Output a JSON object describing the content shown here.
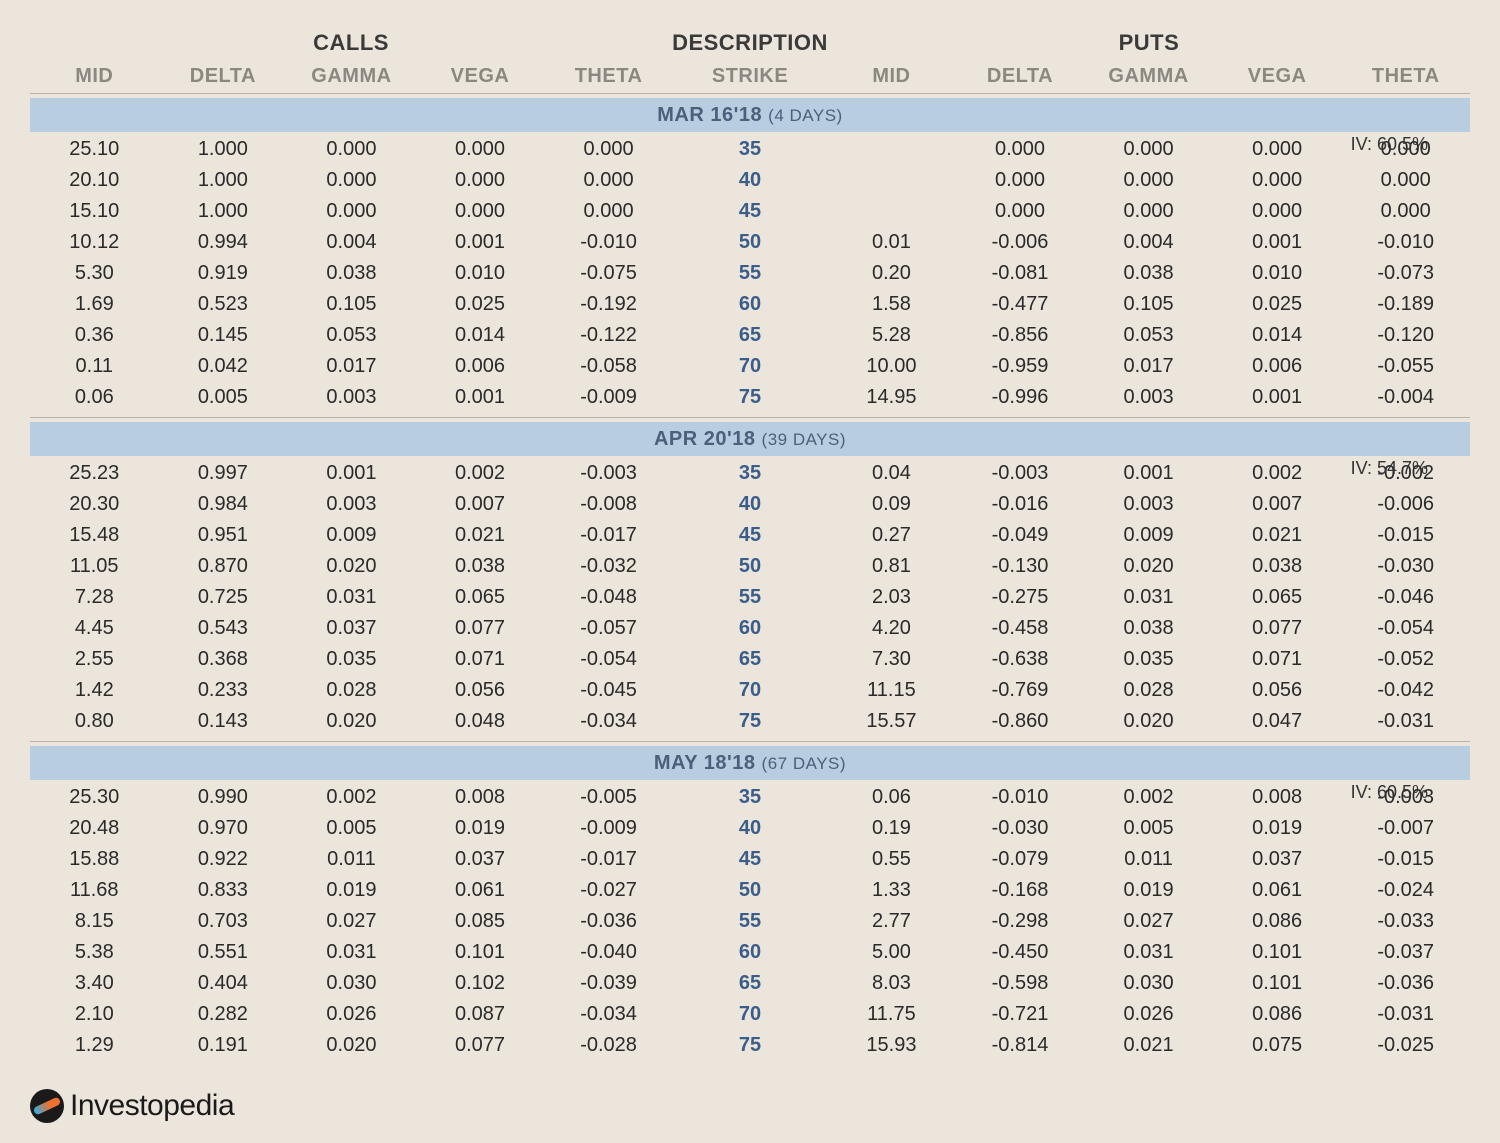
{
  "type": "table",
  "background_color": "#ece5db",
  "section_bar_color": "#b9cde0",
  "strike_color": "#3a5d8a",
  "header_text_color": "#8a8880",
  "columns": {
    "groups": {
      "calls": "CALLS",
      "description": "DESCRIPTION",
      "puts": "PUTS"
    },
    "labels": [
      "MID",
      "DELTA",
      "GAMMA",
      "VEGA",
      "THETA",
      "STRIKE",
      "MID",
      "DELTA",
      "GAMMA",
      "VEGA",
      "THETA"
    ]
  },
  "sections": [
    {
      "date": "MAR 16'18",
      "days": "(4 DAYS)",
      "iv": "IV: 60.5%",
      "rows": [
        [
          "25.10",
          "1.000",
          "0.000",
          "0.000",
          "0.000",
          "35",
          "",
          "0.000",
          "0.000",
          "0.000",
          "0.000"
        ],
        [
          "20.10",
          "1.000",
          "0.000",
          "0.000",
          "0.000",
          "40",
          "",
          "0.000",
          "0.000",
          "0.000",
          "0.000"
        ],
        [
          "15.10",
          "1.000",
          "0.000",
          "0.000",
          "0.000",
          "45",
          "",
          "0.000",
          "0.000",
          "0.000",
          "0.000"
        ],
        [
          "10.12",
          "0.994",
          "0.004",
          "0.001",
          "-0.010",
          "50",
          "0.01",
          "-0.006",
          "0.004",
          "0.001",
          "-0.010"
        ],
        [
          "5.30",
          "0.919",
          "0.038",
          "0.010",
          "-0.075",
          "55",
          "0.20",
          "-0.081",
          "0.038",
          "0.010",
          "-0.073"
        ],
        [
          "1.69",
          "0.523",
          "0.105",
          "0.025",
          "-0.192",
          "60",
          "1.58",
          "-0.477",
          "0.105",
          "0.025",
          "-0.189"
        ],
        [
          "0.36",
          "0.145",
          "0.053",
          "0.014",
          "-0.122",
          "65",
          "5.28",
          "-0.856",
          "0.053",
          "0.014",
          "-0.120"
        ],
        [
          "0.11",
          "0.042",
          "0.017",
          "0.006",
          "-0.058",
          "70",
          "10.00",
          "-0.959",
          "0.017",
          "0.006",
          "-0.055"
        ],
        [
          "0.06",
          "0.005",
          "0.003",
          "0.001",
          "-0.009",
          "75",
          "14.95",
          "-0.996",
          "0.003",
          "0.001",
          "-0.004"
        ]
      ]
    },
    {
      "date": "APR 20'18",
      "days": "(39 DAYS)",
      "iv": "IV: 54.7%",
      "rows": [
        [
          "25.23",
          "0.997",
          "0.001",
          "0.002",
          "-0.003",
          "35",
          "0.04",
          "-0.003",
          "0.001",
          "0.002",
          "-0.002"
        ],
        [
          "20.30",
          "0.984",
          "0.003",
          "0.007",
          "-0.008",
          "40",
          "0.09",
          "-0.016",
          "0.003",
          "0.007",
          "-0.006"
        ],
        [
          "15.48",
          "0.951",
          "0.009",
          "0.021",
          "-0.017",
          "45",
          "0.27",
          "-0.049",
          "0.009",
          "0.021",
          "-0.015"
        ],
        [
          "11.05",
          "0.870",
          "0.020",
          "0.038",
          "-0.032",
          "50",
          "0.81",
          "-0.130",
          "0.020",
          "0.038",
          "-0.030"
        ],
        [
          "7.28",
          "0.725",
          "0.031",
          "0.065",
          "-0.048",
          "55",
          "2.03",
          "-0.275",
          "0.031",
          "0.065",
          "-0.046"
        ],
        [
          "4.45",
          "0.543",
          "0.037",
          "0.077",
          "-0.057",
          "60",
          "4.20",
          "-0.458",
          "0.038",
          "0.077",
          "-0.054"
        ],
        [
          "2.55",
          "0.368",
          "0.035",
          "0.071",
          "-0.054",
          "65",
          "7.30",
          "-0.638",
          "0.035",
          "0.071",
          "-0.052"
        ],
        [
          "1.42",
          "0.233",
          "0.028",
          "0.056",
          "-0.045",
          "70",
          "11.15",
          "-0.769",
          "0.028",
          "0.056",
          "-0.042"
        ],
        [
          "0.80",
          "0.143",
          "0.020",
          "0.048",
          "-0.034",
          "75",
          "15.57",
          "-0.860",
          "0.020",
          "0.047",
          "-0.031"
        ]
      ]
    },
    {
      "date": "MAY 18'18",
      "days": "(67 DAYS)",
      "iv": "IV: 60.5%",
      "rows": [
        [
          "25.30",
          "0.990",
          "0.002",
          "0.008",
          "-0.005",
          "35",
          "0.06",
          "-0.010",
          "0.002",
          "0.008",
          "-0.003"
        ],
        [
          "20.48",
          "0.970",
          "0.005",
          "0.019",
          "-0.009",
          "40",
          "0.19",
          "-0.030",
          "0.005",
          "0.019",
          "-0.007"
        ],
        [
          "15.88",
          "0.922",
          "0.011",
          "0.037",
          "-0.017",
          "45",
          "0.55",
          "-0.079",
          "0.011",
          "0.037",
          "-0.015"
        ],
        [
          "11.68",
          "0.833",
          "0.019",
          "0.061",
          "-0.027",
          "50",
          "1.33",
          "-0.168",
          "0.019",
          "0.061",
          "-0.024"
        ],
        [
          "8.15",
          "0.703",
          "0.027",
          "0.085",
          "-0.036",
          "55",
          "2.77",
          "-0.298",
          "0.027",
          "0.086",
          "-0.033"
        ],
        [
          "5.38",
          "0.551",
          "0.031",
          "0.101",
          "-0.040",
          "60",
          "5.00",
          "-0.450",
          "0.031",
          "0.101",
          "-0.037"
        ],
        [
          "3.40",
          "0.404",
          "0.030",
          "0.102",
          "-0.039",
          "65",
          "8.03",
          "-0.598",
          "0.030",
          "0.101",
          "-0.036"
        ],
        [
          "2.10",
          "0.282",
          "0.026",
          "0.087",
          "-0.034",
          "70",
          "11.75",
          "-0.721",
          "0.026",
          "0.086",
          "-0.031"
        ],
        [
          "1.29",
          "0.191",
          "0.020",
          "0.077",
          "-0.028",
          "75",
          "15.93",
          "-0.814",
          "0.021",
          "0.075",
          "-0.025"
        ]
      ]
    }
  ],
  "branding": "Investopedia"
}
